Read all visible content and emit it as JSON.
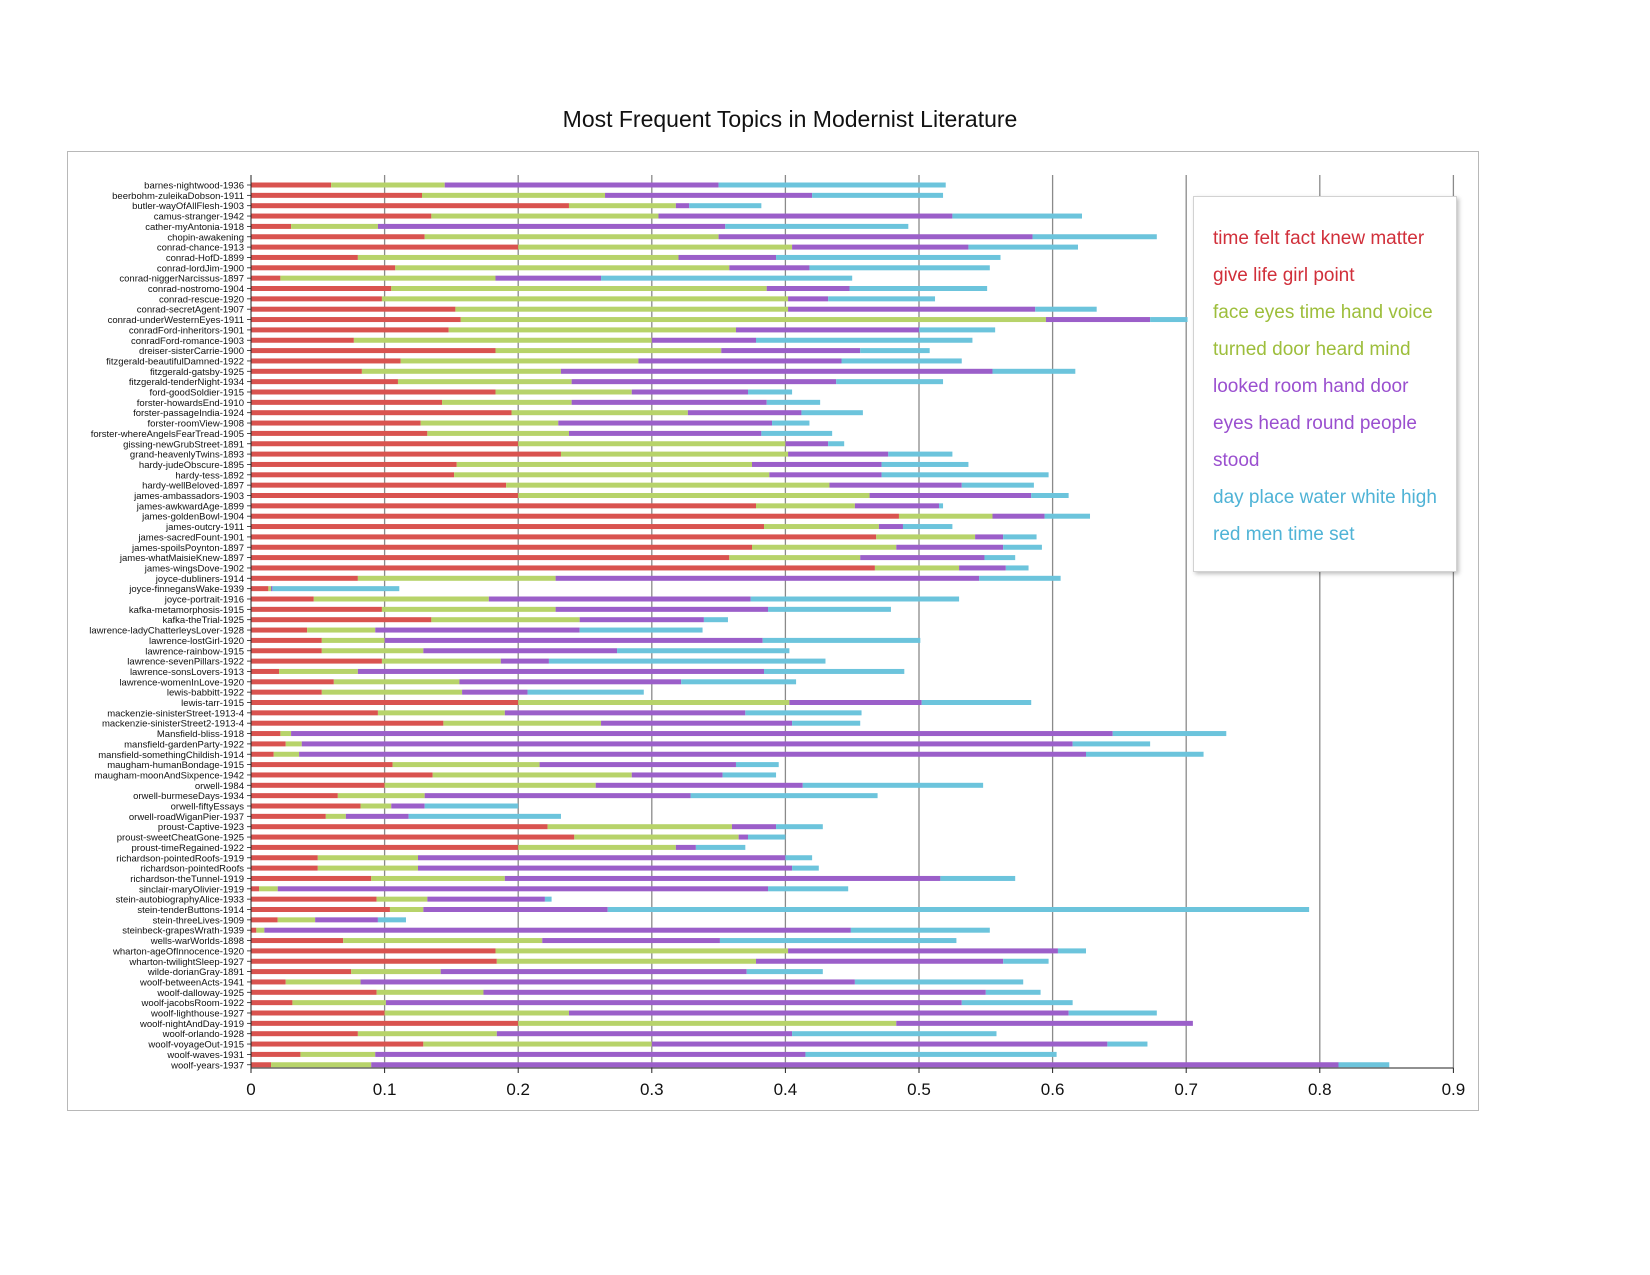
{
  "chart_data": {
    "type": "bar",
    "stacked": true,
    "orientation": "horizontal",
    "title": "Most Frequent Topics in Modernist Literature",
    "xlabel": "",
    "ylabel": "",
    "xlim": [
      0,
      0.9
    ],
    "xticks": [
      "0",
      "0.1",
      "0.2",
      "0.3",
      "0.4",
      "0.5",
      "0.6",
      "0.7",
      "0.8",
      "0.9"
    ],
    "grid": true,
    "legend_position": "top-right",
    "segment_colors": [
      "#d9534f",
      "#b7d36a",
      "#9b5fc9",
      "#6cc4dc"
    ],
    "categories": [
      "barnes-nightwood-1936",
      "beerbohm-zuleikaDobson-1911",
      "butler-wayOfAllFlesh-1903",
      "camus-stranger-1942",
      "cather-myAntonia-1918",
      "chopin-awakening",
      "conrad-chance-1913",
      "conrad-HofD-1899",
      "conrad-lordJim-1900",
      "conrad-niggerNarcissus-1897",
      "conrad-nostromo-1904",
      "conrad-rescue-1920",
      "conrad-secretAgent-1907",
      "conrad-underWesternEyes-1911",
      "conradFord-inheritors-1901",
      "conradFord-romance-1903",
      "dreiser-sisterCarrie-1900",
      "fitzgerald-beautifulDamned-1922",
      "fitzgerald-gatsby-1925",
      "fitzgerald-tenderNight-1934",
      "ford-goodSoldier-1915",
      "forster-howardsEnd-1910",
      "forster-passageIndia-1924",
      "forster-roomView-1908",
      "forster-whereAngelsFearTread-1905",
      "gissing-newGrubStreet-1891",
      "grand-heavenlyTwins-1893",
      "hardy-judeObscure-1895",
      "hardy-tess-1892",
      "hardy-wellBeloved-1897",
      "james-ambassadors-1903",
      "james-awkwardAge-1899",
      "james-goldenBowl-1904",
      "james-outcry-1911",
      "james-sacredFount-1901",
      "james-spoilsPoynton-1897",
      "james-whatMaisieKnew-1897",
      "james-wingsDove-1902",
      "joyce-dubliners-1914",
      "joyce-finnegansWake-1939",
      "joyce-portrait-1916",
      "kafka-metamorphosis-1915",
      "kafka-theTrial-1925",
      "lawrence-ladyChatterleysLover-1928",
      "lawrence-lostGirl-1920",
      "lawrence-rainbow-1915",
      "lawrence-sevenPillars-1922",
      "lawrence-sonsLovers-1913",
      "lawrence-womenInLove-1920",
      "lewis-babbitt-1922",
      "lewis-tarr-1915",
      "mackenzie-sinisterStreet-1913-4",
      "mackenzie-sinisterStreet2-1913-4",
      "Mansfield-bliss-1918",
      "mansfield-gardenParty-1922",
      "mansfield-somethingChildish-1914",
      "maugham-humanBondage-1915",
      "maugham-moonAndSixpence-1942",
      "orwell-1984",
      "orwell-burmeseDays-1934",
      "orwell-fiftyEssays",
      "orwell-roadWiganPier-1937",
      "proust-Captive-1923",
      "proust-sweetCheatGone-1925",
      "proust-timeRegained-1922",
      "richardson-pointedRoofs-1919",
      "richardson-pointedRoofs",
      "richardson-theTunnel-1919",
      "sinclair-maryOlivier-1919",
      "stein-autobiographyAlice-1933",
      "stein-tenderButtons-1914",
      "stein-threeLives-1909",
      "steinbeck-grapesWrath-1939",
      "wells-warWorlds-1898",
      "wharton-ageOfInnocence-1920",
      "wharton-twilightSleep-1927",
      "wilde-dorianGray-1891",
      "woolf-betweenActs-1941",
      "woolf-dalloway-1925",
      "woolf-jacobsRoom-1922",
      "woolf-lighthouse-1927",
      "woolf-nightAndDay-1919",
      "woolf-orlando-1928",
      "woolf-voyageOut-1915",
      "woolf-waves-1931",
      "woolf-years-1937"
    ],
    "cumulative": [
      [
        0.06,
        0.145,
        0.35,
        0.52
      ],
      [
        0.128,
        0.265,
        0.42,
        0.518
      ],
      [
        0.238,
        0.318,
        0.328,
        0.382
      ],
      [
        0.135,
        0.305,
        0.525,
        0.622
      ],
      [
        0.03,
        0.095,
        0.355,
        0.492
      ],
      [
        0.13,
        0.35,
        0.585,
        0.678
      ],
      [
        0.2,
        0.405,
        0.537,
        0.619
      ],
      [
        0.08,
        0.32,
        0.393,
        0.561
      ],
      [
        0.108,
        0.358,
        0.418,
        0.553
      ],
      [
        0.022,
        0.183,
        0.262,
        0.45
      ],
      [
        0.105,
        0.386,
        0.448,
        0.551
      ],
      [
        0.098,
        0.402,
        0.432,
        0.512
      ],
      [
        0.153,
        0.402,
        0.587,
        0.633
      ],
      [
        0.157,
        0.595,
        0.673,
        0.701
      ],
      [
        0.148,
        0.363,
        0.5,
        0.557
      ],
      [
        0.077,
        0.3,
        0.378,
        0.54
      ],
      [
        0.183,
        0.352,
        0.456,
        0.508
      ],
      [
        0.112,
        0.29,
        0.442,
        0.532
      ],
      [
        0.083,
        0.232,
        0.555,
        0.617
      ],
      [
        0.11,
        0.24,
        0.438,
        0.518
      ],
      [
        0.183,
        0.285,
        0.372,
        0.405
      ],
      [
        0.143,
        0.24,
        0.386,
        0.426
      ],
      [
        0.195,
        0.327,
        0.412,
        0.458
      ],
      [
        0.127,
        0.23,
        0.39,
        0.418
      ],
      [
        0.132,
        0.238,
        0.382,
        0.435
      ],
      [
        0.2,
        0.4,
        0.432,
        0.444
      ],
      [
        0.232,
        0.402,
        0.477,
        0.525
      ],
      [
        0.154,
        0.375,
        0.472,
        0.537
      ],
      [
        0.152,
        0.388,
        0.472,
        0.597
      ],
      [
        0.191,
        0.433,
        0.532,
        0.586
      ],
      [
        0.2,
        0.463,
        0.584,
        0.612
      ],
      [
        0.378,
        0.452,
        0.515,
        0.518
      ],
      [
        0.485,
        0.555,
        0.594,
        0.628
      ],
      [
        0.384,
        0.47,
        0.488,
        0.525
      ],
      [
        0.468,
        0.542,
        0.563,
        0.588
      ],
      [
        0.375,
        0.483,
        0.563,
        0.592
      ],
      [
        0.358,
        0.456,
        0.549,
        0.572
      ],
      [
        0.467,
        0.53,
        0.565,
        0.582
      ],
      [
        0.08,
        0.228,
        0.545,
        0.606
      ],
      [
        0.013,
        0.015,
        0.016,
        0.111
      ],
      [
        0.047,
        0.178,
        0.374,
        0.53
      ],
      [
        0.098,
        0.228,
        0.387,
        0.479
      ],
      [
        0.135,
        0.246,
        0.339,
        0.357
      ],
      [
        0.042,
        0.093,
        0.246,
        0.338
      ],
      [
        0.053,
        0.1,
        0.383,
        0.501
      ],
      [
        0.053,
        0.129,
        0.274,
        0.403
      ],
      [
        0.098,
        0.187,
        0.223,
        0.43
      ],
      [
        0.021,
        0.08,
        0.384,
        0.489
      ],
      [
        0.062,
        0.156,
        0.322,
        0.408
      ],
      [
        0.053,
        0.158,
        0.207,
        0.294
      ],
      [
        0.2,
        0.403,
        0.502,
        0.584
      ],
      [
        0.095,
        0.19,
        0.37,
        0.457
      ],
      [
        0.144,
        0.262,
        0.405,
        0.456
      ],
      [
        0.022,
        0.03,
        0.645,
        0.73
      ],
      [
        0.026,
        0.038,
        0.615,
        0.673
      ],
      [
        0.017,
        0.036,
        0.625,
        0.713
      ],
      [
        0.106,
        0.216,
        0.363,
        0.395
      ],
      [
        0.136,
        0.285,
        0.353,
        0.393
      ],
      [
        0.1,
        0.258,
        0.413,
        0.548
      ],
      [
        0.065,
        0.13,
        0.329,
        0.469
      ],
      [
        0.082,
        0.105,
        0.13,
        0.2
      ],
      [
        0.056,
        0.071,
        0.118,
        0.232
      ],
      [
        0.222,
        0.36,
        0.393,
        0.428
      ],
      [
        0.242,
        0.365,
        0.372,
        0.4
      ],
      [
        0.2,
        0.318,
        0.333,
        0.37
      ],
      [
        0.05,
        0.125,
        0.4,
        0.42
      ],
      [
        0.05,
        0.125,
        0.405,
        0.425
      ],
      [
        0.09,
        0.19,
        0.516,
        0.572
      ],
      [
        0.006,
        0.02,
        0.387,
        0.447
      ],
      [
        0.094,
        0.132,
        0.22,
        0.225
      ],
      [
        0.104,
        0.129,
        0.267,
        0.792
      ],
      [
        0.02,
        0.048,
        0.095,
        0.116
      ],
      [
        0.004,
        0.01,
        0.449,
        0.553
      ],
      [
        0.069,
        0.218,
        0.351,
        0.528
      ],
      [
        0.183,
        0.402,
        0.604,
        0.625
      ],
      [
        0.184,
        0.378,
        0.563,
        0.597
      ],
      [
        0.075,
        0.142,
        0.371,
        0.428
      ],
      [
        0.026,
        0.082,
        0.452,
        0.578
      ],
      [
        0.094,
        0.174,
        0.55,
        0.591
      ],
      [
        0.031,
        0.101,
        0.532,
        0.615
      ],
      [
        0.1,
        0.238,
        0.612,
        0.678
      ],
      [
        0.2,
        0.483,
        0.705,
        0.705
      ],
      [
        0.08,
        0.184,
        0.405,
        0.558
      ],
      [
        0.129,
        0.3,
        0.641,
        0.671
      ],
      [
        0.037,
        0.093,
        0.415,
        0.603
      ],
      [
        0.015,
        0.09,
        0.814,
        0.852
      ]
    ]
  },
  "legend": {
    "entries": [
      {
        "label": "time felt fact knew matter",
        "color": "#d12f3a"
      },
      {
        "label": "give life girl point",
        "color": "#d12f3a"
      },
      {
        "label": "face eyes time hand voice",
        "color": "#9dbe3b"
      },
      {
        "label": "turned door heard mind",
        "color": "#9dbe3b"
      },
      {
        "label": "looked room hand door",
        "color": "#9a4fcf"
      },
      {
        "label": "eyes head round people",
        "color": "#9a4fcf"
      },
      {
        "label": "stood",
        "color": "#9a4fcf"
      },
      {
        "label": "day place water white high",
        "color": "#4fb3d6"
      },
      {
        "label": "red men time set",
        "color": "#4fb3d6"
      }
    ]
  }
}
